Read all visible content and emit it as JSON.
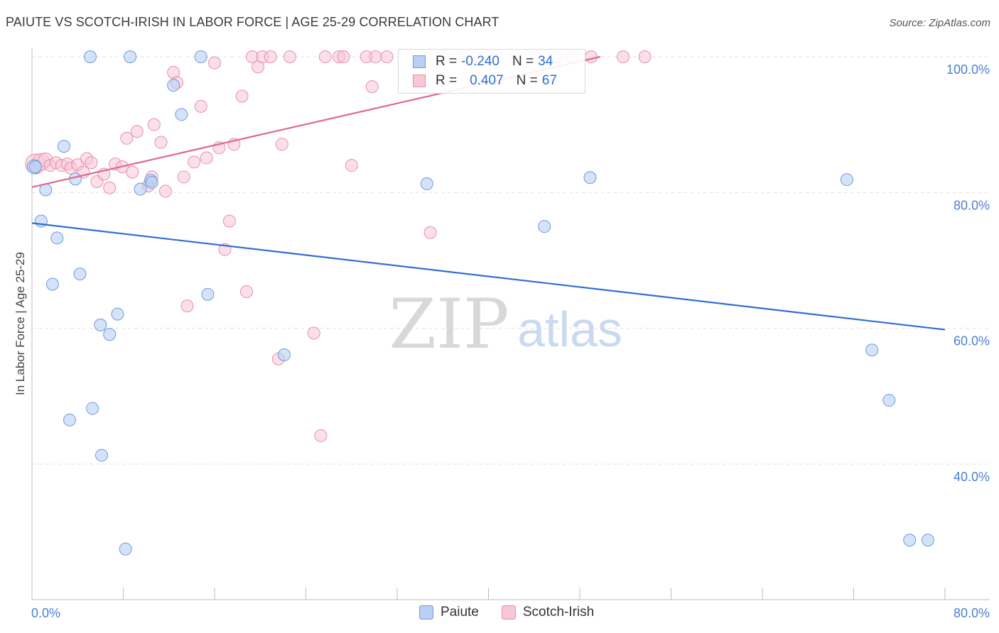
{
  "title": "PAIUTE VS SCOTCH-IRISH IN LABOR FORCE | AGE 25-29 CORRELATION CHART",
  "source": "Source: ZipAtlas.com",
  "watermark": {
    "zip": "ZIP",
    "atlas": "atlas"
  },
  "legend": {
    "paiute": {
      "r_label": "R =",
      "r_value": "-0.240",
      "n_label": "N =",
      "n_value": "34"
    },
    "scotch": {
      "r_label": "R =",
      "r_value": "0.407",
      "n_label": "N =",
      "n_value": "67"
    }
  },
  "bottom_legend": {
    "paiute": "Paiute",
    "scotch": "Scotch-Irish"
  },
  "colors": {
    "paiute_fill": "#b9d0f3",
    "paiute_stroke": "#6d9be0",
    "paiute_line": "#2f6fd3",
    "scotch_fill": "#f8c6d5",
    "scotch_stroke": "#ea8fab",
    "scotch_line": "#e0688f"
  },
  "chart_data": {
    "type": "scatter",
    "title": "PAIUTE VS SCOTCH-IRISH IN LABOR FORCE | AGE 25-29 CORRELATION CHART",
    "xlabel": "",
    "ylabel": "In Labor Force | Age 25-29",
    "xlim": [
      0,
      80
    ],
    "ylim": [
      20,
      103
    ],
    "x_tick_labels": [
      "0.0%",
      "80.0%"
    ],
    "y_ticks": [
      40,
      60,
      80,
      100
    ],
    "y_tick_labels": [
      "40.0%",
      "60.0%",
      "80.0%",
      "100.0%"
    ],
    "series": [
      {
        "name": "Paiute",
        "r": -0.24,
        "n": 34,
        "trend": {
          "x": [
            0,
            80
          ],
          "y": [
            75.5,
            59.8
          ]
        },
        "points": [
          [
            0.2,
            83.8
          ],
          [
            0.8,
            75.8
          ],
          [
            1.2,
            80.4
          ],
          [
            1.8,
            66.5
          ],
          [
            2.2,
            73.3
          ],
          [
            2.8,
            86.8
          ],
          [
            3.3,
            46.5
          ],
          [
            3.8,
            82.0
          ],
          [
            4.2,
            68.0
          ],
          [
            5.1,
            100.0
          ],
          [
            5.3,
            48.2
          ],
          [
            6.0,
            60.5
          ],
          [
            6.1,
            41.3
          ],
          [
            6.8,
            59.1
          ],
          [
            7.5,
            62.1
          ],
          [
            8.2,
            27.5
          ],
          [
            8.6,
            100.0
          ],
          [
            9.5,
            80.5
          ],
          [
            10.4,
            81.8
          ],
          [
            12.4,
            95.8
          ],
          [
            13.1,
            91.5
          ],
          [
            14.8,
            100.0
          ],
          [
            15.4,
            65.0
          ],
          [
            22.1,
            56.1
          ],
          [
            34.6,
            81.3
          ],
          [
            44.9,
            75.0
          ],
          [
            48.9,
            82.2
          ],
          [
            71.4,
            81.9
          ],
          [
            73.6,
            56.8
          ],
          [
            75.1,
            49.4
          ],
          [
            76.9,
            28.8
          ],
          [
            78.5,
            28.8
          ],
          [
            0.3,
            83.8
          ],
          [
            10.5,
            81.5
          ]
        ]
      },
      {
        "name": "Scotch-Irish",
        "r": 0.407,
        "n": 67,
        "trend": {
          "x": [
            0,
            49.8
          ],
          "y": [
            80.8,
            100.0
          ]
        },
        "points": [
          [
            0.3,
            84.2
          ],
          [
            0.8,
            84.5
          ],
          [
            1.2,
            84.8
          ],
          [
            1.6,
            84.0
          ],
          [
            2.1,
            84.4
          ],
          [
            2.6,
            84.0
          ],
          [
            3.1,
            84.2
          ],
          [
            3.4,
            83.6
          ],
          [
            4.0,
            84.1
          ],
          [
            4.5,
            83.0
          ],
          [
            4.8,
            85.0
          ],
          [
            5.2,
            84.4
          ],
          [
            5.7,
            81.6
          ],
          [
            6.3,
            82.7
          ],
          [
            6.8,
            80.7
          ],
          [
            7.3,
            84.2
          ],
          [
            7.9,
            83.8
          ],
          [
            8.3,
            88.0
          ],
          [
            8.8,
            83.0
          ],
          [
            9.2,
            89.0
          ],
          [
            10.2,
            81.0
          ],
          [
            10.5,
            82.3
          ],
          [
            10.7,
            90.0
          ],
          [
            11.3,
            87.4
          ],
          [
            11.7,
            80.2
          ],
          [
            12.4,
            97.7
          ],
          [
            12.7,
            96.2
          ],
          [
            13.3,
            82.3
          ],
          [
            13.6,
            63.3
          ],
          [
            14.2,
            84.5
          ],
          [
            14.8,
            92.7
          ],
          [
            15.3,
            85.1
          ],
          [
            16.0,
            99.1
          ],
          [
            16.4,
            86.6
          ],
          [
            16.9,
            71.6
          ],
          [
            17.3,
            75.8
          ],
          [
            17.7,
            87.1
          ],
          [
            18.4,
            94.2
          ],
          [
            18.8,
            65.4
          ],
          [
            19.3,
            100.0
          ],
          [
            19.8,
            98.5
          ],
          [
            20.2,
            100.0
          ],
          [
            20.9,
            100.0
          ],
          [
            21.6,
            55.5
          ],
          [
            21.9,
            87.1
          ],
          [
            22.6,
            100.0
          ],
          [
            24.7,
            59.3
          ],
          [
            25.3,
            44.2
          ],
          [
            25.7,
            100.0
          ],
          [
            26.9,
            100.0
          ],
          [
            27.3,
            100.0
          ],
          [
            28.0,
            84.0
          ],
          [
            29.3,
            100.0
          ],
          [
            29.8,
            95.6
          ],
          [
            30.1,
            100.0
          ],
          [
            31.1,
            100.0
          ],
          [
            34.9,
            74.1
          ],
          [
            36.3,
            100.0
          ],
          [
            37.6,
            100.0
          ],
          [
            40.7,
            100.0
          ],
          [
            42.3,
            100.0
          ],
          [
            44.1,
            100.0
          ],
          [
            46.0,
            100.0
          ],
          [
            47.3,
            100.0
          ],
          [
            49.0,
            100.0
          ],
          [
            51.8,
            100.0
          ],
          [
            53.7,
            100.0
          ]
        ]
      }
    ]
  }
}
